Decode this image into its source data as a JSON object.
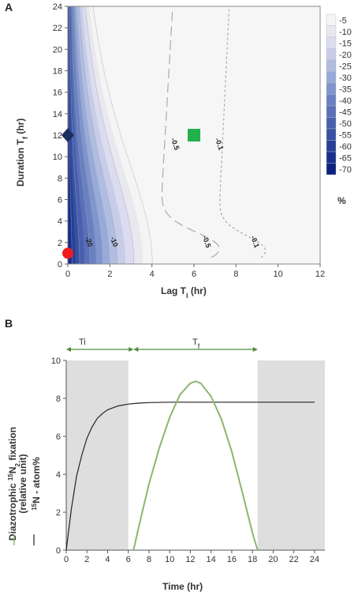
{
  "panel_a": {
    "letter": "A",
    "xlabel_main": "Lag  T",
    "xlabel_sub": "i",
    "xlabel_unit": "  (hr)",
    "ylabel_main": "Duration  T",
    "ylabel_sub": "f",
    "ylabel_unit": "  (hr)",
    "colorbar_unit": "%",
    "contour_labels": [
      {
        "text": "-0.5",
        "x": 5.0,
        "y": 11.1
      },
      {
        "text": "-0.1",
        "x": 7.1,
        "y": 11.1
      },
      {
        "text": "-0.5",
        "x": 6.5,
        "y": 2.0
      },
      {
        "text": "-0.1",
        "x": 8.8,
        "y": 2.0
      },
      {
        "text": "-20",
        "x": 0.9,
        "y": 2.0
      },
      {
        "text": "-10",
        "x": 2.1,
        "y": 2.0
      }
    ]
  },
  "panel_b": {
    "letter": "B",
    "ti_label": "Ti",
    "tf_label_main": "T",
    "tf_label_sub": "f",
    "xlabel": "Time (hr)",
    "ylabel_line1": "Diazotrophic ",
    "ylabel_sup1": "15",
    "ylabel_line1b": "N",
    "ylabel_sub1": "2",
    "ylabel_line1c": " fixation",
    "ylabel_line2": "(relative unit)",
    "ylabel_line3_sup": "15",
    "ylabel_line3": "N - atom%"
  },
  "chart_data": [
    {
      "type": "heatmap",
      "title": "",
      "xlabel": "Lag Ti (hr)",
      "ylabel": "Duration Tf (hr)",
      "xlim": [
        0,
        12
      ],
      "ylim": [
        0,
        24
      ],
      "xticks": [
        "0",
        "2",
        "4",
        "6",
        "8",
        "10",
        "12"
      ],
      "yticks": [
        "0",
        "2",
        "4",
        "6",
        "8",
        "10",
        "12",
        "14",
        "16",
        "18",
        "20",
        "22",
        "24"
      ],
      "colorbar_levels": [
        "-5",
        "-10",
        "-15",
        "-20",
        "-25",
        "-30",
        "-35",
        "-40",
        "-45",
        "-50",
        "-55",
        "-60",
        "-65",
        "-70"
      ],
      "colorbar_colors": [
        "#f4f4f4",
        "#e8e8ee",
        "#dcdcf0",
        "#c8cce8",
        "#b0bde0",
        "#98aad8",
        "#8095cc",
        "#6a80c0",
        "#5a70b8",
        "#4860ad",
        "#3850a3",
        "#283f98",
        "#1a308c",
        "#0c2280"
      ],
      "colorbar_unit": "%",
      "contours": [
        {
          "level": "-0.5",
          "style": "dashed"
        },
        {
          "level": "-0.1",
          "style": "dotted"
        },
        {
          "level": "-10",
          "style": "solid"
        },
        {
          "level": "-20",
          "style": "solid"
        }
      ],
      "markers": [
        {
          "shape": "diamond",
          "color": "#1b2f5e",
          "x": 0,
          "y": 12
        },
        {
          "shape": "square",
          "color": "#22b14c",
          "x": 6,
          "y": 12
        },
        {
          "shape": "circle",
          "color": "#ee1c1c",
          "x": 0,
          "y": 1
        }
      ]
    },
    {
      "type": "line",
      "title": "",
      "xlabel": "Time (hr)",
      "ylabel": "",
      "xlim": [
        0,
        25
      ],
      "ylim": [
        0,
        10
      ],
      "xticks": [
        "0",
        "2",
        "4",
        "6",
        "8",
        "10",
        "12",
        "14",
        "16",
        "18",
        "20",
        "22",
        "24"
      ],
      "yticks": [
        "0",
        "2",
        "4",
        "6",
        "8",
        "10"
      ],
      "shaded_regions": [
        [
          0,
          6
        ],
        [
          18.5,
          25
        ]
      ],
      "arrows": [
        [
          0,
          6.5
        ],
        [
          6.5,
          18.5
        ]
      ],
      "series": [
        {
          "color": "#222222",
          "x": [
            0,
            0.5,
            1,
            1.5,
            2,
            2.5,
            3,
            3.5,
            4,
            5,
            6,
            7,
            8,
            10,
            12,
            14,
            16,
            18,
            20,
            22,
            24
          ],
          "y": [
            0,
            2.2,
            3.9,
            5.0,
            5.9,
            6.5,
            6.95,
            7.2,
            7.4,
            7.6,
            7.7,
            7.75,
            7.78,
            7.8,
            7.8,
            7.8,
            7.8,
            7.8,
            7.8,
            7.8,
            7.8
          ]
        },
        {
          "color": "#8db56e",
          "x": [
            6.5,
            7,
            8,
            9,
            10,
            11,
            12,
            12.5,
            13,
            14,
            15,
            16,
            17,
            18,
            18.5
          ],
          "y": [
            0,
            1.2,
            3.5,
            5.4,
            7.0,
            8.2,
            8.8,
            8.9,
            8.8,
            8.1,
            6.9,
            5.2,
            3.1,
            0.9,
            0
          ]
        }
      ]
    }
  ]
}
